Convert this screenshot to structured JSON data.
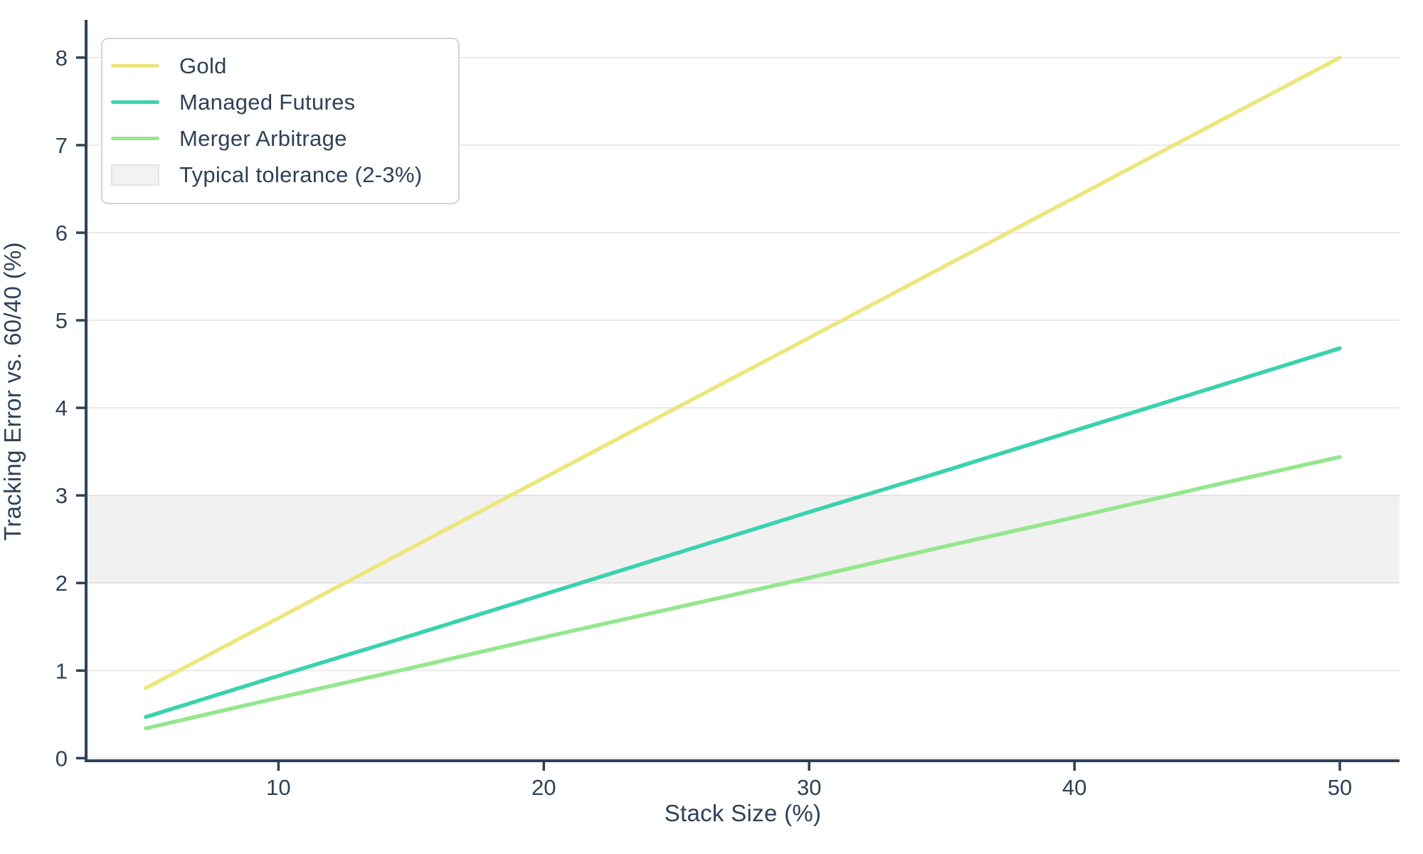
{
  "chart_data": {
    "type": "line",
    "title": "",
    "xlabel": "Stack Size (%)",
    "ylabel": "Tracking Error vs. 60/40 (%)",
    "x": [
      5,
      10,
      15,
      20,
      25,
      30,
      35,
      40,
      45,
      50
    ],
    "series": [
      {
        "name": "Gold",
        "color": "#ebe77c",
        "values": [
          0.8,
          1.6,
          2.4,
          3.2,
          4.0,
          4.8,
          5.6,
          6.4,
          7.2,
          8.0
        ]
      },
      {
        "name": "Managed Futures",
        "color": "#3bd2ae",
        "values": [
          0.47,
          0.94,
          1.4,
          1.87,
          2.34,
          2.81,
          3.27,
          3.74,
          4.21,
          4.68
        ]
      },
      {
        "name": "Merger Arbitrage",
        "color": "#94e78d",
        "values": [
          0.34,
          0.69,
          1.03,
          1.38,
          1.72,
          2.06,
          2.41,
          2.75,
          3.1,
          3.44
        ]
      }
    ],
    "tolerance_band": {
      "label": "Typical tolerance (2-3%)",
      "ymin": 2,
      "ymax": 3,
      "fill_rgba": "rgba(120,120,120,0.10)"
    },
    "xticks": [
      10,
      20,
      30,
      40,
      50
    ],
    "yticks": [
      0,
      1,
      2,
      3,
      4,
      5,
      6,
      7,
      8
    ],
    "xlim": [
      2.75,
      52.25
    ],
    "ylim": [
      -0.03,
      8.43
    ],
    "grid": "horizontal-only",
    "legend_position": "upper-left",
    "colors": {
      "axis": "#2e4157",
      "tick_label": "#2e4157",
      "gridline": "#e9e9e9",
      "background": "#ffffff"
    }
  },
  "legend": {
    "items": [
      {
        "label": "Gold",
        "type": "line",
        "color": "#ebe77c"
      },
      {
        "label": "Managed Futures",
        "type": "line",
        "color": "#3bd2ae"
      },
      {
        "label": "Merger Arbitrage",
        "type": "line",
        "color": "#94e78d"
      },
      {
        "label": "Typical tolerance (2-3%)",
        "type": "patch",
        "color": "#f2f2f2"
      }
    ]
  }
}
